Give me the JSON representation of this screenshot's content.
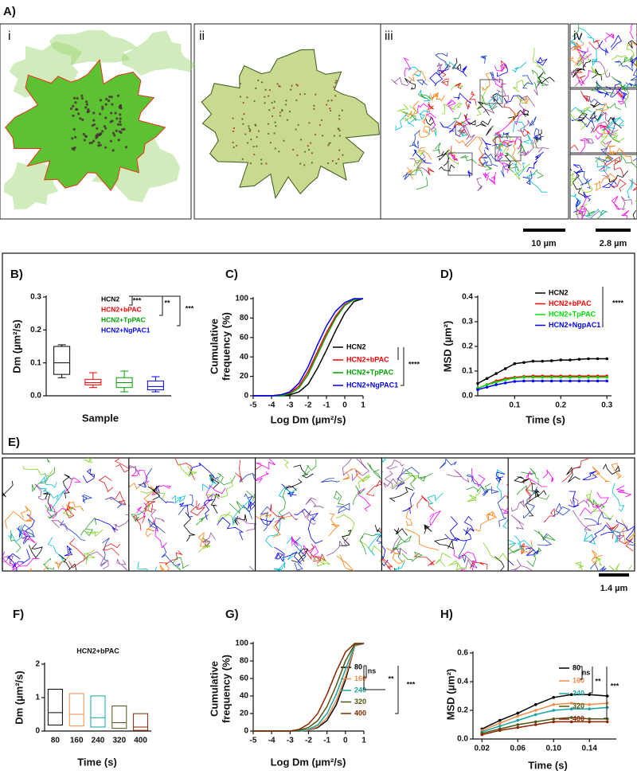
{
  "figure": {
    "panel_labels": [
      "A)",
      "B)",
      "C)",
      "D)",
      "E)",
      "F)",
      "G)",
      "H)"
    ],
    "subpanel_labels": [
      "i",
      "ii",
      "iii",
      "iv"
    ],
    "scale_bars": [
      "10 µm",
      "2.8 µm",
      "1.4 µm"
    ]
  },
  "chart_data": [
    {
      "type": "box",
      "xlabel": "Sample",
      "ylabel": "Dm (µm²/s)",
      "ylim": [
        0,
        0.3
      ],
      "yticks": [
        {
          "value": 0,
          "label": "0.0"
        },
        0.1,
        0.2,
        0.3
      ],
      "series": [
        {
          "name": "HCN2",
          "color": "#000000",
          "whisker_low": 0.055,
          "q1": 0.065,
          "median": 0.1,
          "q3": 0.15,
          "whisker_high": 0.155
        },
        {
          "name": "HCN2+bPAC",
          "color": "#ff0000",
          "whisker_low": 0.025,
          "q1": 0.033,
          "median": 0.04,
          "q3": 0.05,
          "whisker_high": 0.07
        },
        {
          "name": "HCN2+TpPAC",
          "color": "#00a000",
          "whisker_low": 0.012,
          "q1": 0.025,
          "median": 0.04,
          "q3": 0.055,
          "whisker_high": 0.075
        },
        {
          "name": "HCN2+NgPAC1",
          "color": "#0000ff",
          "whisker_low": 0.012,
          "q1": 0.018,
          "median": 0.028,
          "q3": 0.045,
          "whisker_high": 0.058
        }
      ],
      "annotations": [
        "***",
        "**",
        "***"
      ]
    },
    {
      "type": "line",
      "xlabel": "Log Dm (µm²/s)",
      "ylabel": [
        "Cumulative",
        "frequency (%)"
      ],
      "xlim": [
        -5,
        1
      ],
      "xticks": [
        -5,
        -4,
        -3,
        -2,
        -1,
        0,
        1
      ],
      "ylim": [
        0,
        100
      ],
      "yticks": [
        0,
        20,
        40,
        60,
        80,
        100
      ],
      "x": [
        -5,
        -4.5,
        -4,
        -3.5,
        -3,
        -2.5,
        -2,
        -1.5,
        -1,
        -0.5,
        0,
        0.5,
        1
      ],
      "series": [
        {
          "name": "HCN2",
          "color": "#000000",
          "values": [
            0,
            0,
            0,
            0,
            1,
            4,
            12,
            28,
            47,
            67,
            85,
            97,
            100
          ]
        },
        {
          "name": "HCN2+bPAC",
          "color": "#ff0000",
          "values": [
            0,
            0,
            0,
            1,
            3,
            10,
            25,
            45,
            65,
            82,
            94,
            99,
            100
          ]
        },
        {
          "name": "HCN2+TpPAC",
          "color": "#00a000",
          "values": [
            0,
            0,
            0,
            0,
            2,
            8,
            22,
            42,
            62,
            80,
            93,
            99,
            100
          ]
        },
        {
          "name": "HCN2+NgPAC1",
          "color": "#0000ff",
          "values": [
            0,
            0,
            0,
            1,
            4,
            13,
            30,
            52,
            72,
            87,
            96,
            100,
            100
          ]
        }
      ],
      "annotations": [
        "****"
      ]
    },
    {
      "type": "line",
      "markers": true,
      "xlabel": "Time (s)",
      "ylabel": "MSD (µm²)",
      "xlim": [
        0.02,
        0.31
      ],
      "xticks": [
        0.1,
        0.2,
        0.3
      ],
      "ylim": [
        0,
        0.4
      ],
      "yticks": [
        {
          "value": 0,
          "label": "0.0"
        },
        0.1,
        0.2,
        0.3,
        0.4
      ],
      "x": [
        0.02,
        0.04,
        0.06,
        0.08,
        0.1,
        0.12,
        0.14,
        0.16,
        0.18,
        0.2,
        0.22,
        0.24,
        0.26,
        0.28,
        0.3
      ],
      "series": [
        {
          "name": "HCN2",
          "color": "#000000",
          "values": [
            0.05,
            0.07,
            0.09,
            0.11,
            0.13,
            0.135,
            0.14,
            0.14,
            0.142,
            0.145,
            0.145,
            0.148,
            0.15,
            0.15,
            0.15
          ]
        },
        {
          "name": "HCN2+bPAC",
          "color": "#ff0000",
          "values": [
            0.03,
            0.045,
            0.06,
            0.07,
            0.075,
            0.078,
            0.08,
            0.08,
            0.08,
            0.08,
            0.08,
            0.08,
            0.08,
            0.08,
            0.08
          ]
        },
        {
          "name": "HCN2+TpPAC",
          "color": "#00e000",
          "values": [
            0.03,
            0.045,
            0.055,
            0.065,
            0.072,
            0.075,
            0.075,
            0.075,
            0.075,
            0.075,
            0.075,
            0.075,
            0.075,
            0.075,
            0.075
          ]
        },
        {
          "name": "HCN2+NgpAC1",
          "color": "#0000ff",
          "values": [
            0.025,
            0.035,
            0.045,
            0.052,
            0.058,
            0.06,
            0.06,
            0.06,
            0.06,
            0.06,
            0.06,
            0.06,
            0.06,
            0.06,
            0.06
          ]
        }
      ],
      "annotations": [
        "****"
      ]
    },
    {
      "type": "floating_box",
      "title": "HCN2+bPAC",
      "xlabel": "Time (s)",
      "ylabel": "Dm (µm²/s)",
      "ylim": [
        0,
        2
      ],
      "yticks": [
        0,
        1,
        2
      ],
      "categories": [
        "80",
        "160",
        "240",
        "320",
        "400"
      ],
      "low": [
        0.18,
        0.15,
        0.12,
        0.08,
        0.02
      ],
      "median": [
        0.55,
        0.5,
        0.4,
        0.25,
        0.12
      ],
      "high": [
        1.25,
        1.12,
        1.05,
        0.75,
        0.52
      ],
      "colors": [
        "#000000",
        "#f08c4a",
        "#1aa3a3",
        "#555511",
        "#8b2500"
      ]
    },
    {
      "type": "line",
      "xlabel": "Log Dm (µm²/s)",
      "ylabel": [
        "Cumulative",
        "frequency (%)"
      ],
      "xlim": [
        -5,
        1
      ],
      "xticks": [
        -5,
        -4,
        -3,
        -2,
        -1,
        0,
        1
      ],
      "ylim": [
        0,
        100
      ],
      "yticks": [
        0,
        20,
        40,
        60,
        80,
        100
      ],
      "x": [
        -5,
        -4.5,
        -4,
        -3.5,
        -3,
        -2.5,
        -2,
        -1.5,
        -1,
        -0.5,
        0,
        0.5,
        1
      ],
      "series": [
        {
          "name": "80",
          "color": "#000000",
          "values": [
            0,
            0,
            0,
            0,
            0,
            0,
            1,
            4,
            12,
            30,
            58,
            97,
            100
          ]
        },
        {
          "name": "160",
          "color": "#f08c4a",
          "values": [
            0,
            0,
            0,
            0,
            0,
            0,
            1,
            5,
            15,
            35,
            62,
            97,
            100
          ]
        },
        {
          "name": "240",
          "color": "#1aa3a3",
          "values": [
            0,
            0,
            0,
            0,
            0,
            0,
            2,
            7,
            20,
            42,
            70,
            98,
            100
          ]
        },
        {
          "name": "320",
          "color": "#555511",
          "values": [
            0,
            0,
            0,
            0,
            0,
            1,
            4,
            12,
            28,
            52,
            80,
            99,
            100
          ]
        },
        {
          "name": "400",
          "color": "#8b2500",
          "values": [
            0,
            0,
            0,
            0,
            0,
            2,
            8,
            20,
            42,
            68,
            90,
            100,
            100
          ]
        }
      ],
      "annotations": [
        "ns",
        "**",
        "***"
      ]
    },
    {
      "type": "line",
      "markers": true,
      "xlabel": "Time (s)",
      "ylabel": "MSD (µm²)",
      "xlim": [
        0.01,
        0.17
      ],
      "xticks": [
        0.02,
        0.06,
        {
          "value": 0.1,
          "label": "0.10"
        },
        0.14
      ],
      "ylim": [
        0,
        0.6
      ],
      "yticks": [
        {
          "value": 0,
          "label": "0.0"
        },
        0.2,
        0.4,
        0.6
      ],
      "x": [
        0.02,
        0.04,
        0.06,
        0.08,
        0.1,
        0.12,
        0.14,
        0.16
      ],
      "series": [
        {
          "name": "80",
          "color": "#000000",
          "values": [
            0.07,
            0.13,
            0.18,
            0.24,
            0.29,
            0.31,
            0.31,
            0.3
          ]
        },
        {
          "name": "160",
          "color": "#f08c4a",
          "values": [
            0.06,
            0.11,
            0.16,
            0.2,
            0.24,
            0.25,
            0.24,
            0.25
          ]
        },
        {
          "name": "240",
          "color": "#1aa3a3",
          "values": [
            0.05,
            0.09,
            0.13,
            0.17,
            0.2,
            0.21,
            0.21,
            0.22
          ]
        },
        {
          "name": "320",
          "color": "#555511",
          "values": [
            0.04,
            0.07,
            0.1,
            0.12,
            0.14,
            0.15,
            0.14,
            0.14
          ]
        },
        {
          "name": "400",
          "color": "#8b2500",
          "values": [
            0.03,
            0.06,
            0.08,
            0.1,
            0.12,
            0.12,
            0.12,
            0.12
          ]
        }
      ],
      "annotations": [
        "ns",
        "**",
        "***"
      ]
    }
  ]
}
